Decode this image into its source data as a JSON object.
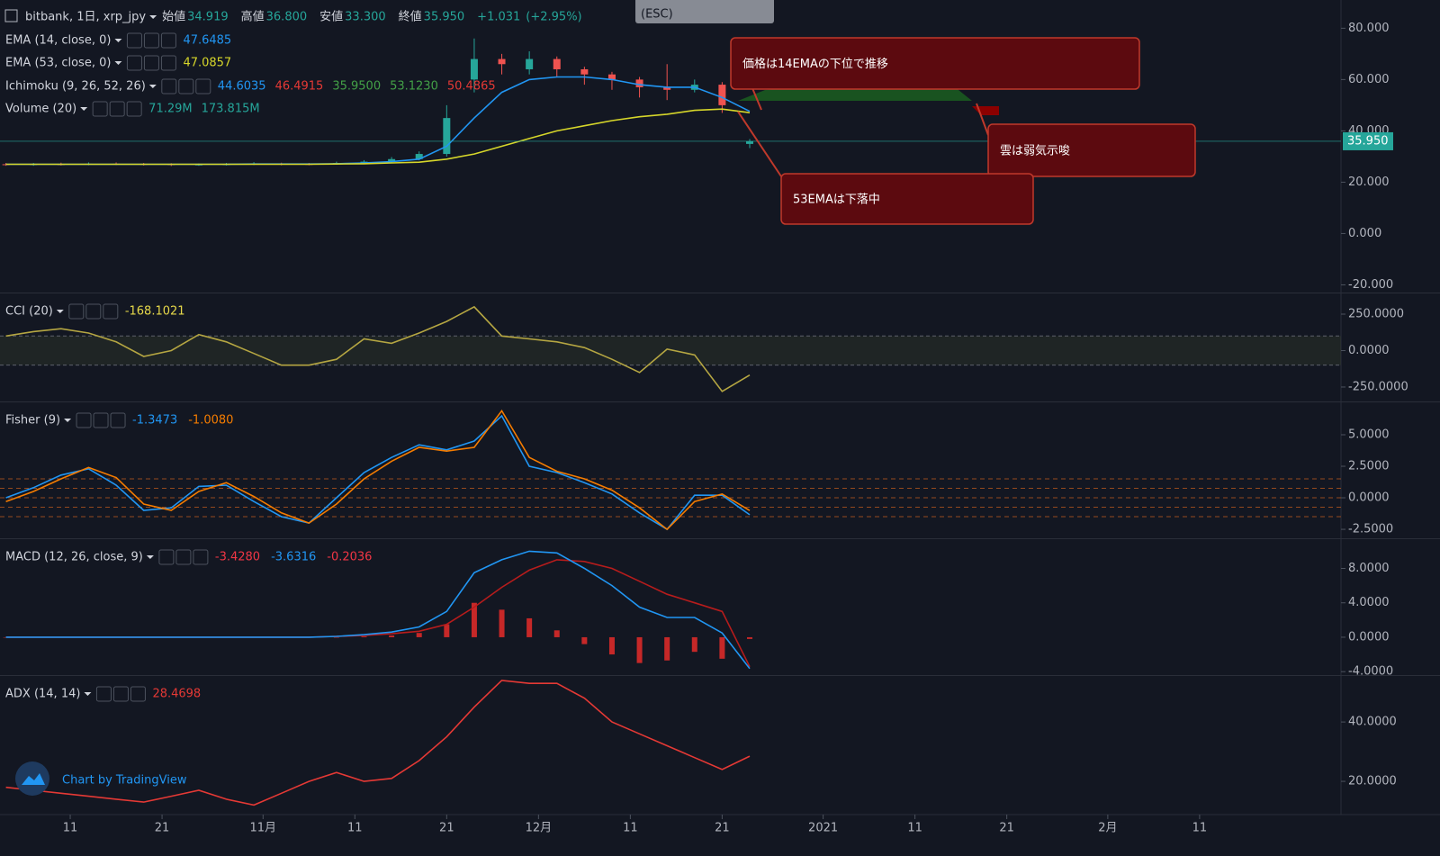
{
  "chart_data": [
    {
      "type": "candlestick",
      "title": "bitbank, 1日, xrp_jpy",
      "ohlc_labels": [
        {
          "label": "始値",
          "value": "34.919"
        },
        {
          "label": "高値",
          "value": "36.800"
        },
        {
          "label": "安値",
          "value": "33.300"
        },
        {
          "label": "終値",
          "value": "35.950"
        }
      ],
      "change": "+1.031",
      "change_pct": "(+2.95%)",
      "last_label": "35.950",
      "x": [
        3,
        6,
        9,
        12,
        15,
        18,
        21,
        24,
        27,
        30,
        33,
        36,
        39,
        42,
        45,
        48,
        51,
        54,
        57,
        60,
        63,
        66,
        69,
        72,
        75,
        78,
        81,
        84
      ],
      "open": [
        27,
        26.8,
        27,
        26.9,
        27.2,
        27.1,
        27,
        26.8,
        26.9,
        27,
        27.2,
        27.1,
        27,
        27.5,
        28,
        29,
        31,
        60,
        68,
        64,
        68,
        64,
        62,
        60,
        57,
        56,
        58,
        34.919
      ],
      "high": [
        27.5,
        27.5,
        27.6,
        27.7,
        27.7,
        27.5,
        27.4,
        27.3,
        27.5,
        27.8,
        27.6,
        27.5,
        28,
        28.6,
        29.8,
        32,
        50,
        76,
        70,
        71,
        69,
        65,
        63,
        61,
        66,
        60,
        59,
        36.8
      ],
      "low": [
        26.4,
        26.4,
        26.5,
        26.6,
        26.7,
        26.5,
        26.3,
        26.4,
        26.5,
        26.7,
        26.6,
        26.6,
        26.8,
        27.2,
        27.6,
        28.5,
        30,
        55,
        62,
        62,
        61,
        58,
        56,
        53,
        52,
        55,
        47,
        33.3
      ],
      "close": [
        26.8,
        27,
        26.9,
        27.2,
        27.1,
        27,
        26.8,
        26.9,
        27,
        27.2,
        27.1,
        27,
        27.5,
        28,
        29,
        31,
        45,
        68,
        66,
        68,
        64,
        62,
        60,
        57,
        56,
        58,
        50,
        35.95
      ],
      "up_color": "#26a69a",
      "down_color": "#ef5350",
      "series": [
        {
          "name": "EMA (14, close, 0)",
          "color": "#2196f3",
          "legend_value": "47.6485",
          "values": [
            27,
            27,
            27,
            27,
            27,
            27,
            27,
            27,
            27,
            27.1,
            27.1,
            27.1,
            27.2,
            27.5,
            28,
            29,
            34,
            45,
            55,
            60,
            61,
            61,
            60,
            58,
            57,
            57,
            53,
            47.6
          ]
        },
        {
          "name": "EMA (53, close, 0)",
          "color": "#d6d62a",
          "legend_value": "47.0857",
          "values": [
            27,
            27,
            27,
            27,
            27,
            27,
            27,
            27,
            27,
            27,
            27,
            27,
            27.1,
            27.2,
            27.5,
            27.8,
            29,
            31,
            34,
            37,
            40,
            42,
            44,
            45.5,
            46.5,
            48,
            48.5,
            47.1
          ]
        }
      ],
      "indicators": [
        {
          "name": "Ichimoku (9, 26, 52, 26)",
          "legend_values": [
            "44.6035",
            "46.4915",
            "35.9500",
            "53.1230",
            "50.4865"
          ],
          "colors": [
            "#2196f3",
            "#e53935",
            "#43a047",
            "#43a047",
            "#e53935"
          ]
        },
        {
          "name": "Volume (20)",
          "legend_values": [
            "71.29M",
            "173.815M"
          ],
          "colors": [
            "#26a69a",
            "#26a69a"
          ]
        }
      ],
      "ylim": [
        -23,
        91
      ],
      "yticks": [
        {
          "value": 80,
          "label": "80.000"
        },
        {
          "value": 60,
          "label": "60.000"
        },
        {
          "value": 40,
          "label": "40.000"
        },
        {
          "value": 20,
          "label": "20.000"
        },
        {
          "value": 0,
          "label": "0.000"
        },
        {
          "value": -20,
          "label": "-20.000"
        }
      ]
    },
    {
      "type": "line",
      "title": "CCI (20)",
      "x": [
        3,
        6,
        9,
        12,
        15,
        18,
        21,
        24,
        27,
        30,
        33,
        36,
        39,
        42,
        45,
        48,
        51,
        54,
        57,
        60,
        63,
        66,
        69,
        72,
        75,
        78,
        81,
        84
      ],
      "series": [
        {
          "color": "#b5a642",
          "legend_value": "-168.1021",
          "values": [
            100,
            130,
            150,
            120,
            60,
            -40,
            0,
            110,
            60,
            -20,
            -100,
            -100,
            -60,
            80,
            50,
            120,
            200,
            300,
            100,
            80,
            60,
            20,
            -60,
            -150,
            10,
            -30,
            -280,
            -168
          ]
        }
      ],
      "band": [
        -100,
        100
      ],
      "ylim": [
        -349,
        392
      ],
      "yticks": [
        {
          "value": 250,
          "label": "250.0000"
        },
        {
          "value": 0,
          "label": "0.0000"
        },
        {
          "value": -250,
          "label": "-250.0000"
        }
      ]
    },
    {
      "type": "line",
      "title": "Fisher (9)",
      "x": [
        3,
        6,
        9,
        12,
        15,
        18,
        21,
        24,
        27,
        30,
        33,
        36,
        39,
        42,
        45,
        48,
        51,
        54,
        57,
        60,
        63,
        66,
        69,
        72,
        75,
        78,
        81,
        84
      ],
      "series": [
        {
          "color": "#2196f3",
          "legend_value": "-1.3473",
          "values": [
            0,
            0.8,
            1.8,
            2.3,
            1.0,
            -1.0,
            -0.8,
            0.9,
            1.0,
            -0.3,
            -1.5,
            -2.0,
            0,
            2.0,
            3.2,
            4.2,
            3.8,
            4.5,
            6.5,
            2.5,
            2.0,
            1.2,
            0.3,
            -1.2,
            -2.5,
            0.2,
            0.2,
            -1.35
          ]
        },
        {
          "color": "#f57c00",
          "legend_value": "-1.0080",
          "values": [
            -0.3,
            0.5,
            1.5,
            2.4,
            1.6,
            -0.5,
            -1,
            0.5,
            1.2,
            0.1,
            -1.2,
            -2,
            -0.5,
            1.5,
            2.9,
            4,
            3.7,
            4,
            6.9,
            3.2,
            2.1,
            1.5,
            0.6,
            -0.8,
            -2.5,
            -0.3,
            0.3,
            -1.008
          ]
        }
      ],
      "levels": [
        1.5,
        0.75,
        0,
        -0.75,
        -1.5
      ],
      "level_color": "#b5561e",
      "ylim": [
        -3.21,
        7.57
      ],
      "yticks": [
        {
          "value": 5,
          "label": "5.0000"
        },
        {
          "value": 2.5,
          "label": "2.5000"
        },
        {
          "value": 0,
          "label": "0.0000"
        },
        {
          "value": -2.5,
          "label": "-2.5000"
        }
      ]
    },
    {
      "type": "line",
      "title": "MACD (12, 26, close, 9)",
      "x": [
        3,
        6,
        9,
        12,
        15,
        18,
        21,
        24,
        27,
        30,
        33,
        36,
        39,
        42,
        45,
        48,
        51,
        54,
        57,
        60,
        63,
        66,
        69,
        72,
        75,
        78,
        81,
        84
      ],
      "series": [
        {
          "color": "#b71c1c",
          "legend_value": "-3.4280",
          "values": [
            0,
            0,
            0,
            0,
            0,
            0,
            0,
            0,
            0,
            0,
            0,
            0,
            0.1,
            0.2,
            0.4,
            0.7,
            1.5,
            3.5,
            5.8,
            7.8,
            9,
            8.8,
            8,
            6.5,
            5,
            4,
            3,
            -3.428
          ]
        },
        {
          "color": "#2196f3",
          "legend_value": "-3.6316",
          "values": [
            0,
            0,
            0,
            0,
            0,
            0,
            0,
            0,
            0,
            0,
            0,
            0,
            0.1,
            0.3,
            0.6,
            1.2,
            3,
            7.5,
            9,
            10,
            9.8,
            8,
            6,
            3.5,
            2.3,
            2.3,
            0.5,
            -3.6316
          ]
        }
      ],
      "histogram": {
        "color": "#c62828",
        "legend_value": "-0.2036",
        "values": [
          0,
          0,
          0,
          0,
          0,
          0,
          0,
          0,
          0,
          0,
          0,
          0,
          0,
          0.1,
          0.2,
          0.5,
          1.5,
          4,
          3.2,
          2.2,
          0.8,
          -0.8,
          -2,
          -3,
          -2.7,
          -1.7,
          -2.5,
          -0.2036
        ]
      },
      "ylim": [
        -4.4,
        11.4
      ],
      "yticks": [
        {
          "value": 8,
          "label": "8.0000"
        },
        {
          "value": 4,
          "label": "4.0000"
        },
        {
          "value": 0,
          "label": "0.0000"
        },
        {
          "value": -4,
          "label": "-4.0000"
        }
      ]
    },
    {
      "type": "line",
      "title": "ADX (14, 14)",
      "x": [
        3,
        6,
        9,
        12,
        15,
        18,
        21,
        24,
        27,
        30,
        33,
        36,
        39,
        42,
        45,
        48,
        51,
        54,
        57,
        60,
        63,
        66,
        69,
        72,
        75,
        78,
        81,
        84
      ],
      "series": [
        {
          "color": "#e53935",
          "legend_value": "28.4698",
          "values": [
            18,
            17,
            16,
            15,
            14,
            13,
            15,
            17,
            14,
            12,
            16,
            20,
            23,
            20,
            21,
            27,
            35,
            45,
            54,
            53,
            53,
            48,
            40,
            36,
            32,
            28,
            24,
            28.4698
          ]
        }
      ],
      "ylim": [
        8.8,
        55.5
      ],
      "yticks": [
        {
          "value": 40,
          "label": "40.0000"
        },
        {
          "value": 20,
          "label": "20.0000"
        }
      ],
      "xlim": [
        2.35,
        148.4
      ],
      "xticks": [
        {
          "value": 10,
          "label": "11"
        },
        {
          "value": 20,
          "label": "21"
        },
        {
          "value": 31,
          "label": "11月"
        },
        {
          "value": 41,
          "label": "11"
        },
        {
          "value": 51,
          "label": "21"
        },
        {
          "value": 61,
          "label": "12月"
        },
        {
          "value": 71,
          "label": "11"
        },
        {
          "value": 81,
          "label": "21"
        },
        {
          "value": 92,
          "label": "2021"
        },
        {
          "value": 102,
          "label": "11"
        },
        {
          "value": 112,
          "label": "21"
        },
        {
          "value": 123,
          "label": "2月"
        },
        {
          "value": 133,
          "label": "11"
        }
      ]
    }
  ],
  "annotations": [
    "価格は14EMAの下位で推移",
    "雲は弱気示唆",
    "53EMAは下落中"
  ],
  "tooltip": "(ESC)",
  "watermark": "Chart by TradingView"
}
